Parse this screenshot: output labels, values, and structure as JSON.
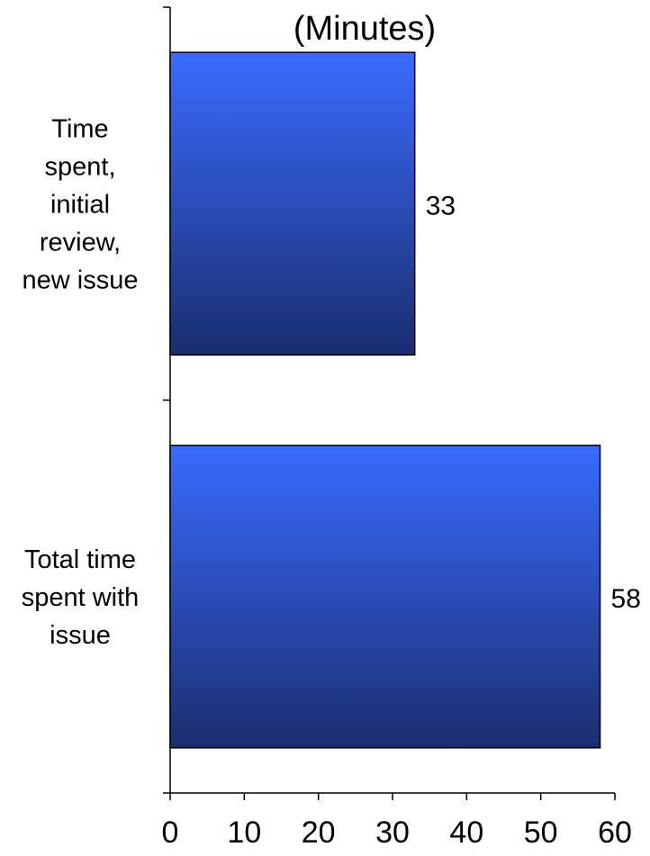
{
  "chart_data": {
    "type": "bar",
    "orientation": "horizontal",
    "title": "(Minutes)",
    "xlabel": "",
    "ylabel": "",
    "categories": [
      [
        "Time",
        "spent,",
        "initial",
        "review,",
        "new issue"
      ],
      [
        "Total time",
        "spent with",
        "issue"
      ]
    ],
    "values": [
      33,
      58
    ],
    "data_labels": [
      "33",
      "58"
    ],
    "xlim": [
      0,
      60
    ],
    "x_ticks": [
      "0",
      "10",
      "20",
      "30",
      "40",
      "50",
      "60"
    ],
    "grid": false,
    "legend": "none",
    "bar_color_light": "#3A6BFF",
    "bar_color_dark": "#1A2E6E",
    "bar_border_color": "#000000"
  }
}
